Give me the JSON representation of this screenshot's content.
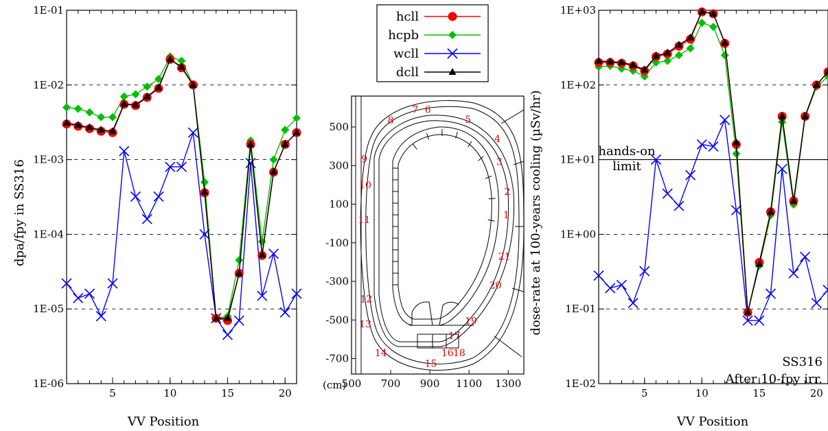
{
  "chart_data": [
    {
      "type": "line",
      "xlabel": "VV Position",
      "ylabel": "dpa/fpy in SS316",
      "yscale": "log",
      "ylim": [
        1e-06,
        0.1
      ],
      "xlim": [
        1,
        21
      ],
      "yticks": [
        "1E-06",
        "1E-05",
        "1E-04",
        "1E-03",
        "1E-02",
        "1E-01"
      ],
      "xticks": [
        "5",
        "10",
        "15",
        "20"
      ],
      "grid": "dashed horizontal at decades",
      "x": [
        1,
        2,
        3,
        4,
        5,
        6,
        7,
        8,
        9,
        10,
        11,
        12,
        13,
        14,
        15,
        16,
        17,
        18,
        19,
        20,
        21
      ],
      "series": [
        {
          "name": "hcll",
          "values": [
            0.003,
            0.0028,
            0.0026,
            0.0024,
            0.0023,
            0.0055,
            0.0053,
            0.0068,
            0.009,
            0.022,
            0.017,
            0.01,
            0.00036,
            7.5e-06,
            7e-06,
            3e-05,
            0.0016,
            5.2e-05,
            0.00068,
            0.0016,
            0.0023
          ]
        },
        {
          "name": "hcpb",
          "values": [
            0.005,
            0.0048,
            0.0043,
            0.0037,
            0.0037,
            0.007,
            0.0075,
            0.0095,
            0.012,
            0.024,
            0.021,
            0.01,
            0.0005,
            7.5e-06,
            8e-06,
            4.5e-05,
            0.0018,
            8e-05,
            0.001,
            0.0025,
            0.0036
          ]
        },
        {
          "name": "wcll",
          "values": [
            2.2e-05,
            1.4e-05,
            1.6e-05,
            8e-06,
            2.2e-05,
            0.0013,
            0.00032,
            0.00016,
            0.00032,
            0.0008,
            0.0008,
            0.0023,
            0.0001,
            7.5e-06,
            4.5e-06,
            7e-06,
            0.0009,
            1.5e-05,
            5.5e-05,
            9e-06,
            1.6e-05
          ]
        },
        {
          "name": "dcll",
          "values": [
            0.0031,
            0.0029,
            0.0027,
            0.0025,
            0.0024,
            0.0056,
            0.0054,
            0.007,
            0.0092,
            0.022,
            0.0175,
            0.01,
            0.00037,
            7.5e-06,
            7.5e-06,
            3e-05,
            0.0016,
            5.3e-05,
            0.00069,
            0.0016,
            0.0023
          ]
        }
      ]
    },
    {
      "type": "scatter",
      "description_role": "geometry-map",
      "xlabel_unit": "(cm)",
      "xticks": [
        "500",
        "700",
        "900",
        "1100",
        "1300"
      ],
      "yticks": [
        "500",
        "300",
        "100",
        "-100",
        "-300",
        "-500",
        "-700"
      ],
      "xlim": [
        500,
        1380
      ],
      "ylim": [
        -780,
        660
      ],
      "position_labels": [
        "1",
        "2",
        "3",
        "4",
        "5",
        "6",
        "7",
        "8",
        "9",
        "10",
        "11",
        "12",
        "13",
        "14",
        "15",
        "16",
        "17",
        "18",
        "19",
        "20",
        "21"
      ],
      "position_label_xy": [
        [
          1290,
          45
        ],
        [
          1295,
          165
        ],
        [
          1255,
          320
        ],
        [
          1245,
          440
        ],
        [
          1095,
          540
        ],
        [
          890,
          590
        ],
        [
          825,
          590
        ],
        [
          700,
          535
        ],
        [
          565,
          335
        ],
        [
          570,
          200
        ],
        [
          565,
          20
        ],
        [
          575,
          -390
        ],
        [
          570,
          -520
        ],
        [
          650,
          -670
        ],
        [
          905,
          -725
        ],
        [
          990,
          -670
        ],
        [
          1025,
          -580
        ],
        [
          1050,
          -670
        ],
        [
          1110,
          -505
        ],
        [
          1235,
          -320
        ],
        [
          1280,
          -170
        ]
      ]
    },
    {
      "type": "line",
      "xlabel": "VV Position",
      "ylabel": "dose-rate at 100-years cooling (µSv/hr)",
      "yscale": "log",
      "ylim": [
        0.01,
        1000.0
      ],
      "xlim": [
        1,
        21
      ],
      "yticks": [
        "1E-02",
        "1E-01",
        "1E+00",
        "1E+01",
        "1E+02",
        "1E+03"
      ],
      "xticks": [
        "5",
        "10",
        "15",
        "20"
      ],
      "grid": "dashed horizontal at decades",
      "reference_line": {
        "y": 10,
        "label_line1": "hands-on",
        "label_line2": "limit"
      },
      "annotation_line1": "SS316",
      "annotation_line2": "After 10-fpy irr.",
      "x": [
        1,
        2,
        3,
        4,
        5,
        6,
        7,
        8,
        9,
        10,
        11,
        12,
        13,
        14,
        15,
        16,
        17,
        18,
        19,
        20,
        21
      ],
      "series": [
        {
          "name": "hcll",
          "values": [
            200,
            200,
            195,
            180,
            155,
            240,
            260,
            330,
            410,
            950,
            900,
            360,
            16,
            0.09,
            0.42,
            2.0,
            38,
            2.8,
            38,
            100,
            150
          ]
        },
        {
          "name": "hcpb",
          "values": [
            175,
            180,
            165,
            155,
            130,
            200,
            210,
            250,
            310,
            680,
            600,
            250,
            12,
            0.09,
            0.38,
            1.8,
            32,
            2.5,
            37,
            95,
            130
          ]
        },
        {
          "name": "wcll",
          "values": [
            0.28,
            0.19,
            0.21,
            0.12,
            0.32,
            10,
            3.5,
            2.4,
            6.2,
            16,
            15,
            34,
            2.1,
            0.07,
            0.07,
            0.16,
            7.5,
            0.3,
            0.5,
            0.12,
            0.18
          ]
        },
        {
          "name": "dcll",
          "values": [
            210,
            205,
            200,
            185,
            160,
            245,
            270,
            345,
            430,
            960,
            900,
            370,
            17,
            0.09,
            0.4,
            2.0,
            38,
            2.8,
            38,
            100,
            150
          ]
        }
      ]
    }
  ],
  "legend": {
    "entries": [
      {
        "label": "hcll",
        "color": "#ff0000",
        "marker": "circle"
      },
      {
        "label": "hcpb",
        "color": "#00c000",
        "marker": "diamond"
      },
      {
        "label": "wcll",
        "color": "#0000ff",
        "marker": "x"
      },
      {
        "label": "dcll",
        "color": "#000000",
        "marker": "triangle"
      }
    ]
  },
  "colors": {
    "hcll": "#ff0000",
    "hcpb": "#00c000",
    "wcll": "#0000ff",
    "dcll": "#000000",
    "geometry_labels": "#e00000"
  }
}
